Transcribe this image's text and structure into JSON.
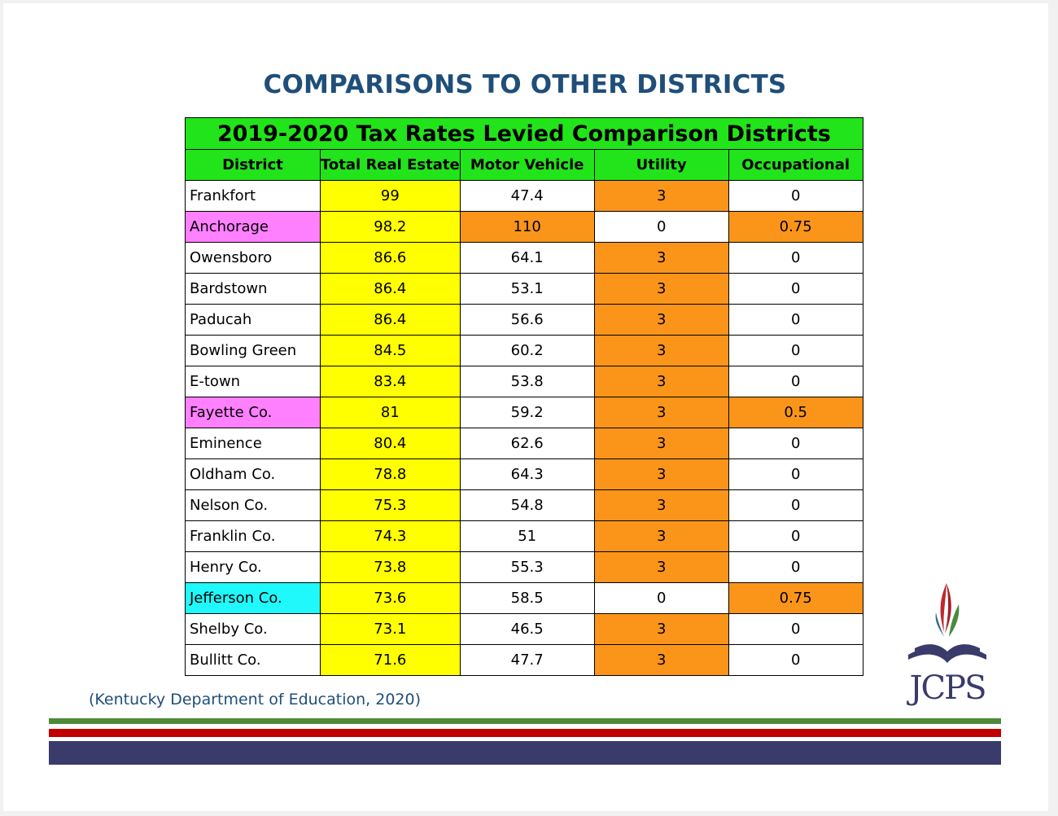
{
  "page_title": "COMPARISONS TO OTHER DISTRICTS",
  "table": {
    "caption": "2019-2020 Tax Rates Levied Comparison Districts",
    "headers": [
      "District",
      "Total Real Estate",
      "Motor Vehicle",
      "Utility",
      "Occupational"
    ],
    "rows": [
      {
        "district": "Frankfort",
        "real_estate": "99",
        "motor_vehicle": "47.4",
        "utility": "3",
        "occupational": "0"
      },
      {
        "district": "Anchorage",
        "real_estate": "98.2",
        "motor_vehicle": "110",
        "utility": "0",
        "occupational": "0.75"
      },
      {
        "district": "Owensboro",
        "real_estate": "86.6",
        "motor_vehicle": "64.1",
        "utility": "3",
        "occupational": "0"
      },
      {
        "district": "Bardstown",
        "real_estate": "86.4",
        "motor_vehicle": "53.1",
        "utility": "3",
        "occupational": "0"
      },
      {
        "district": "Paducah",
        "real_estate": "86.4",
        "motor_vehicle": "56.6",
        "utility": "3",
        "occupational": "0"
      },
      {
        "district": "Bowling Green",
        "real_estate": "84.5",
        "motor_vehicle": "60.2",
        "utility": "3",
        "occupational": "0"
      },
      {
        "district": "E-town",
        "real_estate": "83.4",
        "motor_vehicle": "53.8",
        "utility": "3",
        "occupational": "0"
      },
      {
        "district": "Fayette Co.",
        "real_estate": "81",
        "motor_vehicle": "59.2",
        "utility": "3",
        "occupational": "0.5"
      },
      {
        "district": "Eminence",
        "real_estate": "80.4",
        "motor_vehicle": "62.6",
        "utility": "3",
        "occupational": "0"
      },
      {
        "district": "Oldham Co.",
        "real_estate": "78.8",
        "motor_vehicle": "64.3",
        "utility": "3",
        "occupational": "0"
      },
      {
        "district": "Nelson Co.",
        "real_estate": "75.3",
        "motor_vehicle": "54.8",
        "utility": "3",
        "occupational": "0"
      },
      {
        "district": "Franklin Co.",
        "real_estate": "74.3",
        "motor_vehicle": "51",
        "utility": "3",
        "occupational": "0"
      },
      {
        "district": "Henry Co.",
        "real_estate": "73.8",
        "motor_vehicle": "55.3",
        "utility": "3",
        "occupational": "0"
      },
      {
        "district": "Jefferson Co.",
        "real_estate": "73.6",
        "motor_vehicle": "58.5",
        "utility": "0",
        "occupational": "0.75"
      },
      {
        "district": "Shelby Co.",
        "real_estate": "73.1",
        "motor_vehicle": "46.5",
        "utility": "3",
        "occupational": "0"
      },
      {
        "district": "Bullitt Co.",
        "real_estate": "71.6",
        "motor_vehicle": "47.7",
        "utility": "3",
        "occupational": "0"
      }
    ]
  },
  "source_note": "(Kentucky Department of Education, 2020)",
  "logo": {
    "text": "JCPS"
  },
  "colors": {
    "title": "#1f4e79",
    "header_green": "#22e41a",
    "highlight_yellow": "#ffff00",
    "highlight_orange": "#fb951a",
    "highlight_pink": "#ff80ff",
    "highlight_cyan": "#1ff9fb",
    "bar_green": "#4e8a3a",
    "bar_red": "#c00000",
    "bar_navy": "#3a3a6b"
  }
}
